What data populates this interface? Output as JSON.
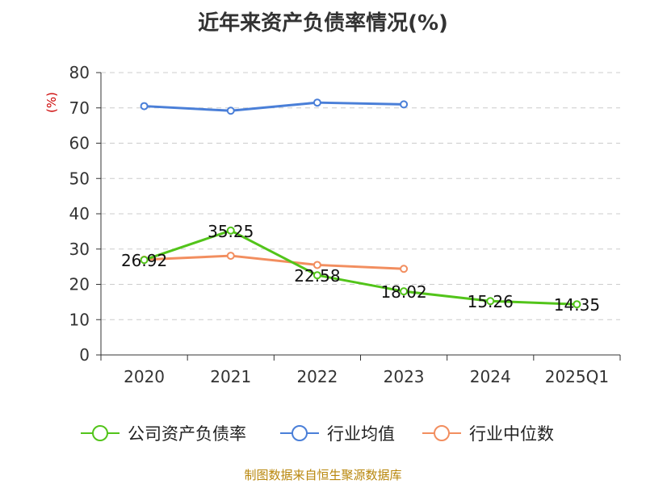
{
  "chart_data": {
    "type": "line",
    "title": "近年来资产负债率情况(%)",
    "ylabel": "(%)",
    "ylim": [
      0,
      80
    ],
    "yticks": [
      0,
      10,
      20,
      30,
      40,
      50,
      60,
      70,
      80
    ],
    "categories": [
      "2020",
      "2021",
      "2022",
      "2023",
      "2024",
      "2025Q1"
    ],
    "grid": "horizontal dashed",
    "legend_position": "bottom",
    "series": [
      {
        "name": "公司资产负债率",
        "color": "#52c41a",
        "values": [
          26.92,
          35.25,
          22.58,
          18.02,
          15.26,
          14.35
        ],
        "labels": [
          "26.92",
          "35.25",
          "22.58",
          "18.02",
          "15.26",
          "14.35"
        ]
      },
      {
        "name": "行业均值",
        "color": "#4a7fd8",
        "values": [
          70.5,
          69.2,
          71.5,
          71.0,
          null,
          null
        ]
      },
      {
        "name": "行业中位数",
        "color": "#f28e5f",
        "values": [
          27.0,
          28.1,
          25.5,
          24.4,
          null,
          null
        ]
      }
    ]
  },
  "footer": {
    "source": "制图数据来自恒生聚源数据库"
  }
}
